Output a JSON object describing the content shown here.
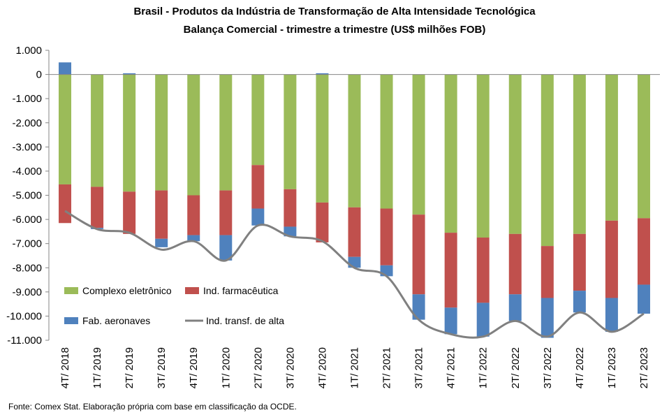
{
  "chart_data": {
    "type": "bar",
    "title": "Brasil - Produtos da Indústria de Transformação de Alta Intensidade Tecnológica",
    "subtitle": "Balança Comercial - trimestre a trimestre (US$ milhões FOB)",
    "categories": [
      "4T/ 2018",
      "1T/ 2019",
      "2T/ 2019",
      "3T/ 2019",
      "4T/ 2019",
      "1T/ 2020",
      "2T/ 2020",
      "3T/ 2020",
      "4T/ 2020",
      "1T/ 2021",
      "2T/ 2021",
      "3T/ 2021",
      "4T/ 2021",
      "1T/ 2022",
      "2T/ 2022",
      "3T/ 2022",
      "4T/ 2022",
      "1T/ 2023",
      "2T/ 2023"
    ],
    "ylim": [
      -11000,
      1000
    ],
    "yticks": [
      1000,
      0,
      -1000,
      -2000,
      -3000,
      -4000,
      -5000,
      -6000,
      -7000,
      -8000,
      -9000,
      -10000,
      -11000
    ],
    "ytick_labels": [
      "1.000",
      "0",
      "-1.000",
      "-2.000",
      "-3.000",
      "-4.000",
      "-5.000",
      "-6.000",
      "-7.000",
      "-8.000",
      "-9.000",
      "-10.000",
      "-11.000"
    ],
    "grid": false,
    "series": [
      {
        "name": "Complexo eletrônico",
        "kind": "bar",
        "color": "#9BBB59",
        "values": [
          -4550,
          -4650,
          -4850,
          -4800,
          -5000,
          -4800,
          -3750,
          -4750,
          -5300,
          -5500,
          -5550,
          -5800,
          -6550,
          -6750,
          -6600,
          -7100,
          -6600,
          -6050,
          -5950
        ]
      },
      {
        "name": "Ind. farmacêutica",
        "kind": "bar",
        "color": "#C0504D",
        "values": [
          -1600,
          -1700,
          -1750,
          -2000,
          -1650,
          -1850,
          -1800,
          -1550,
          -1650,
          -2050,
          -2350,
          -3300,
          -3100,
          -2700,
          -2500,
          -2150,
          -2350,
          -3200,
          -2750
        ]
      },
      {
        "name": "Fab. aeronaves",
        "kind": "bar",
        "color": "#4F81BD",
        "values": [
          500,
          -50,
          50,
          -350,
          -250,
          -1050,
          -700,
          -400,
          50,
          -450,
          -450,
          -1050,
          -1100,
          -1400,
          -1100,
          -1650,
          -900,
          -1400,
          -1200
        ]
      },
      {
        "name": "Ind. transf. de alta",
        "kind": "line",
        "color": "#808080",
        "values": [
          -5650,
          -6400,
          -6550,
          -7250,
          -6900,
          -7700,
          -6250,
          -6700,
          -6900,
          -8000,
          -8350,
          -10150,
          -10750,
          -10850,
          -10200,
          -10850,
          -9850,
          -10650,
          -9900
        ]
      }
    ],
    "legend_position": "bottom-left, inside plot"
  },
  "source": "Fonte:  Comex Stat. Elaboração própria com base em classificação da OCDE."
}
